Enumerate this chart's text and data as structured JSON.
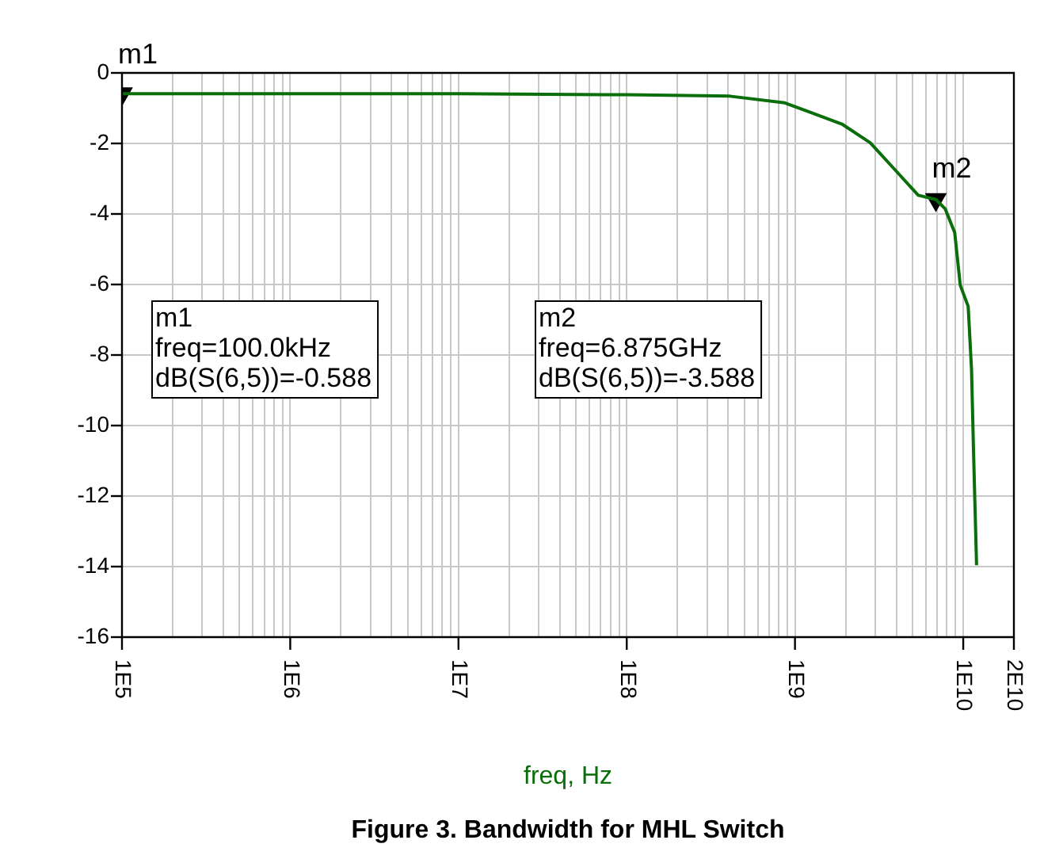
{
  "chart_data": {
    "type": "line",
    "title": "Figure 3. Bandwidth for MHL Switch",
    "xlabel": "freq, Hz",
    "log": "x",
    "grid": true,
    "legend": false,
    "marker": "none",
    "line_style": "solid",
    "x": [
      100000,
      1000000,
      10000000,
      100000000,
      410000000,
      870000000,
      1900000000,
      2800000000,
      3900000000,
      5400000000,
      6875000000,
      7800000000,
      8900000000,
      9600000000,
      10700000000,
      11200000000,
      11500000000,
      12000000000
    ],
    "series": [
      {
        "color": "#0a6e0a",
        "values": [
          -0.59,
          -0.59,
          -0.59,
          -0.62,
          -0.66,
          -0.85,
          -1.45,
          -1.98,
          -2.73,
          -3.47,
          -3.59,
          -3.85,
          -4.53,
          -6.02,
          -6.62,
          -8.4,
          -10.65,
          -13.96
        ]
      },
      {
        "type": "scatter",
        "marker": "triangle",
        "color": "#000000",
        "x": [
          100000,
          6875000000
        ],
        "values": [
          -0.588,
          -3.588
        ]
      }
    ],
    "xlim": [
      100000,
      20000000000
    ],
    "xticks": [
      {
        "value": 100000,
        "label": "1E5"
      },
      {
        "value": 200000,
        "label": null
      },
      {
        "value": 300000,
        "label": null
      },
      {
        "value": 400000,
        "label": null
      },
      {
        "value": 500000,
        "label": null
      },
      {
        "value": 600000,
        "label": null
      },
      {
        "value": 700000,
        "label": null
      },
      {
        "value": 800000,
        "label": null
      },
      {
        "value": 900000,
        "label": null
      },
      {
        "value": 1000000,
        "label": "1E6"
      },
      {
        "value": 2000000,
        "label": null
      },
      {
        "value": 3000000,
        "label": null
      },
      {
        "value": 4000000,
        "label": null
      },
      {
        "value": 5000000,
        "label": null
      },
      {
        "value": 6000000,
        "label": null
      },
      {
        "value": 7000000,
        "label": null
      },
      {
        "value": 8000000,
        "label": null
      },
      {
        "value": 9000000,
        "label": null
      },
      {
        "value": 10000000,
        "label": "1E7"
      },
      {
        "value": 20000000,
        "label": null
      },
      {
        "value": 30000000,
        "label": null
      },
      {
        "value": 40000000,
        "label": null
      },
      {
        "value": 50000000,
        "label": null
      },
      {
        "value": 60000000,
        "label": null
      },
      {
        "value": 70000000,
        "label": null
      },
      {
        "value": 80000000,
        "label": null
      },
      {
        "value": 90000000,
        "label": null
      },
      {
        "value": 100000000,
        "label": "1E8"
      },
      {
        "value": 200000000,
        "label": null
      },
      {
        "value": 300000000,
        "label": null
      },
      {
        "value": 400000000,
        "label": null
      },
      {
        "value": 500000000,
        "label": null
      },
      {
        "value": 600000000,
        "label": null
      },
      {
        "value": 700000000,
        "label": null
      },
      {
        "value": 800000000,
        "label": null
      },
      {
        "value": 900000000,
        "label": null
      },
      {
        "value": 1000000000,
        "label": "1E9"
      },
      {
        "value": 2000000000,
        "label": null
      },
      {
        "value": 3000000000,
        "label": null
      },
      {
        "value": 4000000000,
        "label": null
      },
      {
        "value": 5000000000,
        "label": null
      },
      {
        "value": 6000000000,
        "label": null
      },
      {
        "value": 7000000000,
        "label": null
      },
      {
        "value": 8000000000,
        "label": null
      },
      {
        "value": 9000000000,
        "label": null
      },
      {
        "value": 10000000000,
        "label": "1E10"
      },
      {
        "value": 20000000000,
        "label": "2E10"
      }
    ],
    "ylim": [
      -16,
      0
    ],
    "yticks": [
      -16,
      -14,
      -12,
      -10,
      -8,
      -6,
      -4,
      -2,
      0
    ],
    "annotations": [
      {
        "text": "m1",
        "x": 100000,
        "y": -0.588
      },
      {
        "text": "m2",
        "x": 6875000000,
        "y": -3.588
      },
      "m1\nfreq=100.0kHz\ndB(S(6,5))=-0.588",
      "m2\nfreq=6.875GHz\ndB(S(6,5))=-3.588"
    ]
  }
}
